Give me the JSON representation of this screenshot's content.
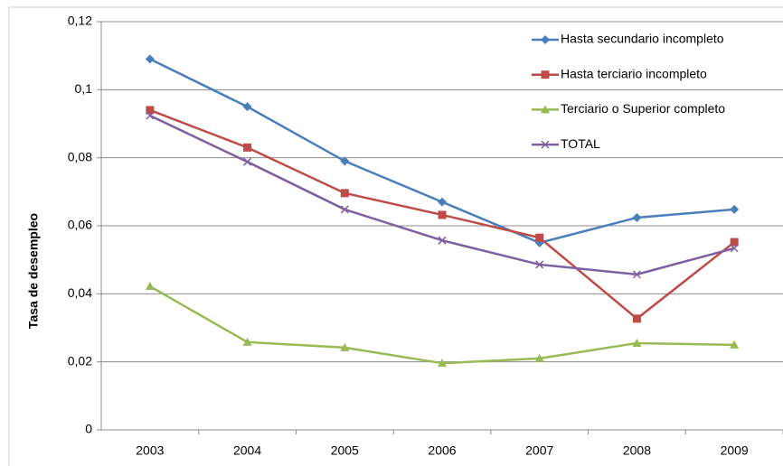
{
  "chart_data": {
    "type": "line",
    "y_label": "Tasa de desempleo",
    "categories": [
      "2003",
      "2004",
      "2005",
      "2006",
      "2007",
      "2008",
      "2009"
    ],
    "series": [
      {
        "name": "Hasta secundario incompleto",
        "color": "#4a7ebb",
        "marker": "diamond",
        "values": [
          0.109,
          0.095,
          0.079,
          0.067,
          0.055,
          0.0624,
          0.0648
        ]
      },
      {
        "name": "Hasta terciario incompleto",
        "color": "#be4b48",
        "marker": "square",
        "values": [
          0.094,
          0.083,
          0.0696,
          0.0632,
          0.0565,
          0.0327,
          0.0552
        ]
      },
      {
        "name": "Terciario o Superior completo",
        "color": "#98b954",
        "marker": "triangle",
        "values": [
          0.0422,
          0.0258,
          0.0242,
          0.0196,
          0.021,
          0.0255,
          0.025
        ]
      },
      {
        "name": "TOTAL",
        "color": "#7d60a0",
        "marker": "x",
        "values": [
          0.0924,
          0.0788,
          0.0648,
          0.0557,
          0.0486,
          0.0457,
          0.0534
        ]
      }
    ],
    "ylim": [
      0,
      0.12
    ],
    "yticks": [
      0,
      {
        "value": 0.02,
        "label": "0,02"
      },
      {
        "value": 0.04,
        "label": "0,04"
      },
      {
        "value": 0.06,
        "label": "0,06"
      },
      {
        "value": 0.08,
        "label": "0,08"
      },
      {
        "value": 0.1,
        "label": "0,1"
      },
      {
        "value": 0.12,
        "label": "0,12"
      }
    ],
    "grid": true,
    "legend": "top-right"
  }
}
